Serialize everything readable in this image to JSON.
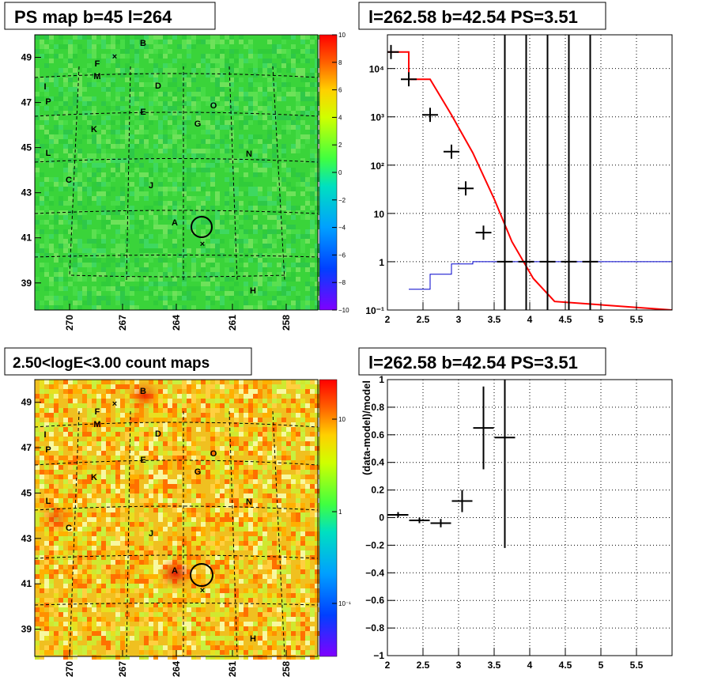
{
  "chart_data": [
    {
      "id": "ps_map",
      "type": "heatmap",
      "title": "PS map b=45 l=264",
      "x_ticks": [
        "270",
        "267",
        "264",
        "261",
        "258"
      ],
      "y_ticks": [
        "39",
        "41",
        "43",
        "45",
        "47",
        "49"
      ],
      "colorbar_ticks": [
        "10",
        "8",
        "6",
        "4",
        "2",
        "0",
        "−2",
        "−4",
        "−6",
        "−8",
        "−10"
      ],
      "colorbar_range": [
        -10,
        10
      ],
      "source_labels": [
        "B",
        "F",
        "M",
        "I",
        "P",
        "D",
        "O",
        "E",
        "G",
        "K",
        "L",
        "N",
        "C",
        "J",
        "A",
        "H"
      ]
    },
    {
      "id": "spectrum",
      "type": "line",
      "title": "l=262.58 b=42.54 PS=3.51",
      "y_scale": "log",
      "xlim": [
        2,
        6
      ],
      "ylim": [
        0.1,
        50000
      ],
      "x_ticks": [
        "2",
        "2.5",
        "3",
        "3.5",
        "4",
        "4.5",
        "5",
        "5.5"
      ],
      "y_ticks": [
        "10⁻¹",
        "1",
        "10",
        "10²",
        "10³",
        "10⁴"
      ],
      "grid": true,
      "series": [
        {
          "color": "#ff0000",
          "x": [
            2,
            2.3,
            2.3,
            2.6,
            2.6,
            2.9,
            2.9,
            3.2,
            3.2,
            3.5,
            3.5,
            3.75,
            3.75,
            4.05,
            4.05,
            4.35,
            4.35,
            6
          ],
          "y": [
            22000,
            22000,
            6000,
            6000,
            6000,
            1100,
            1100,
            180,
            180,
            20,
            20,
            2.6,
            2.6,
            0.45,
            0.45,
            0.15,
            0.15,
            0.1
          ]
        },
        {
          "color": "#0000cc",
          "x": [
            2.3,
            2.6,
            2.6,
            2.9,
            2.9,
            3.2,
            3.2,
            6
          ],
          "y": [
            0.27,
            0.27,
            0.55,
            0.55,
            0.9,
            0.9,
            1.0,
            1.0
          ]
        },
        {
          "color": "#000000",
          "x": [
            2.05,
            2.3,
            2.6,
            2.9,
            3.1,
            3.35,
            3.65,
            3.95,
            4.25,
            4.55,
            4.85
          ],
          "y": [
            22000,
            6000,
            1100,
            190,
            33,
            4,
            1,
            1,
            1,
            1,
            1
          ]
        }
      ]
    },
    {
      "id": "count_map",
      "type": "heatmap",
      "title": "2.50<logE<3.00 count maps",
      "x_ticks": [
        "270",
        "267",
        "264",
        "261",
        "258"
      ],
      "y_ticks": [
        "39",
        "41",
        "43",
        "45",
        "47",
        "49"
      ],
      "colorbar_ticks": [
        "10",
        "1",
        "10⁻¹"
      ],
      "source_labels": [
        "B",
        "F",
        "M",
        "I",
        "P",
        "D",
        "O",
        "E",
        "G",
        "K",
        "L",
        "N",
        "C",
        "J",
        "A",
        "H"
      ]
    },
    {
      "id": "residual",
      "type": "scatter",
      "title": "l=262.58 b=42.54 PS=3.51",
      "ylabel": "(data-model)/model",
      "xlim": [
        2,
        6
      ],
      "ylim": [
        -1,
        1
      ],
      "x_ticks": [
        "2",
        "2.5",
        "3",
        "3.5",
        "4",
        "4.5",
        "5",
        "5.5"
      ],
      "y_ticks": [
        "−1",
        "−0.8",
        "−0.6",
        "−0.4",
        "−0.2",
        "0",
        "0.2",
        "0.4",
        "0.6",
        "0.8",
        "1"
      ],
      "grid": true,
      "points": [
        {
          "x": 2.15,
          "y": 0.02,
          "err": 0.02
        },
        {
          "x": 2.45,
          "y": -0.02,
          "err": 0.02
        },
        {
          "x": 2.75,
          "y": -0.04,
          "err": 0.03
        },
        {
          "x": 3.05,
          "y": 0.12,
          "err": 0.08
        },
        {
          "x": 3.35,
          "y": 0.65,
          "err": 0.3
        },
        {
          "x": 3.65,
          "y": 0.58,
          "err": 0.8
        }
      ]
    }
  ]
}
